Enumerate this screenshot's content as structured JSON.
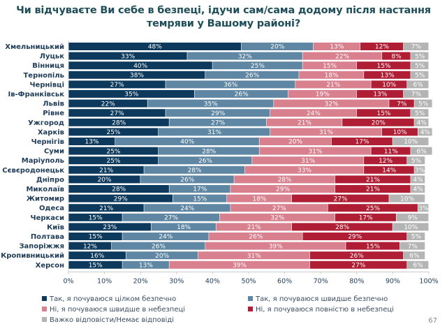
{
  "page_number": "67",
  "chart_data": {
    "type": "bar",
    "orientation": "horizontal",
    "stacked": true,
    "title": "Чи відчуваєте Ви себе в безпеці, ідучи сам/сама додому після настання темряви у Вашому районі?",
    "title_lines": [
      "Чи відчуваєте Ви себе в безпеці, ідучи сам/сама додому після настання",
      "темряви у Вашому районі?"
    ],
    "xlabel": "",
    "ylabel": "",
    "xlim": [
      0,
      100
    ],
    "x_ticks": [
      "0%",
      "10%",
      "20%",
      "30%",
      "40%",
      "50%",
      "60%",
      "70%",
      "80%",
      "90%",
      "100%"
    ],
    "grid": false,
    "legend_position": "bottom",
    "categories": [
      "Хмельницький",
      "Луцьк",
      "Вінниця",
      "Тернопіль",
      "Чернівці",
      "Ів-Франківськ",
      "Львів",
      "Рівне",
      "Ужгород",
      "Харків",
      "Чернігів",
      "Суми",
      "Маріуполь",
      "Сєвєродонецьк",
      "Дніпро",
      "Миколаїв",
      "Житомир",
      "Одеса",
      "Черкаси",
      "Київ",
      "Полтава",
      "Запоріжжя",
      "Кропивницький",
      "Херсон"
    ],
    "series": [
      {
        "name": "Так, я почуваюся цілком безпечно",
        "color": "#0d3a5c",
        "values": [
          48,
          33,
          40,
          38,
          27,
          35,
          22,
          27,
          28,
          25,
          13,
          25,
          25,
          21,
          20,
          28,
          29,
          21,
          15,
          23,
          15,
          12,
          16,
          15
        ]
      },
      {
        "name": "Так, я почуваюся швидше безпечно",
        "color": "#5f86a2",
        "values": [
          20,
          32,
          25,
          26,
          36,
          26,
          35,
          29,
          27,
          31,
          40,
          28,
          26,
          28,
          26,
          17,
          15,
          24,
          27,
          18,
          24,
          26,
          20,
          13
        ]
      },
      {
        "name": "Ні, я почуваюся швидше в небезпеці",
        "color": "#d9808f",
        "values": [
          13,
          22,
          15,
          18,
          21,
          19,
          32,
          24,
          21,
          31,
          20,
          31,
          31,
          33,
          28,
          29,
          18,
          27,
          32,
          21,
          26,
          39,
          31,
          39
        ]
      },
      {
        "name": "Ні, я почуваюся повністю в небезпеці",
        "color": "#b01e35",
        "values": [
          12,
          8,
          15,
          13,
          10,
          13,
          7,
          15,
          20,
          10,
          17,
          11,
          12,
          14,
          21,
          21,
          27,
          25,
          17,
          28,
          29,
          15,
          26,
          27
        ]
      },
      {
        "name": "Важко відповісти/Немає відповіді",
        "color": "#b4b4b4",
        "values": [
          7,
          5,
          5,
          5,
          6,
          7,
          5,
          5,
          4,
          4,
          10,
          6,
          5,
          3,
          4,
          4,
          10,
          3,
          9,
          10,
          5,
          7,
          6,
          6
        ]
      }
    ],
    "value_suffix": "%"
  }
}
